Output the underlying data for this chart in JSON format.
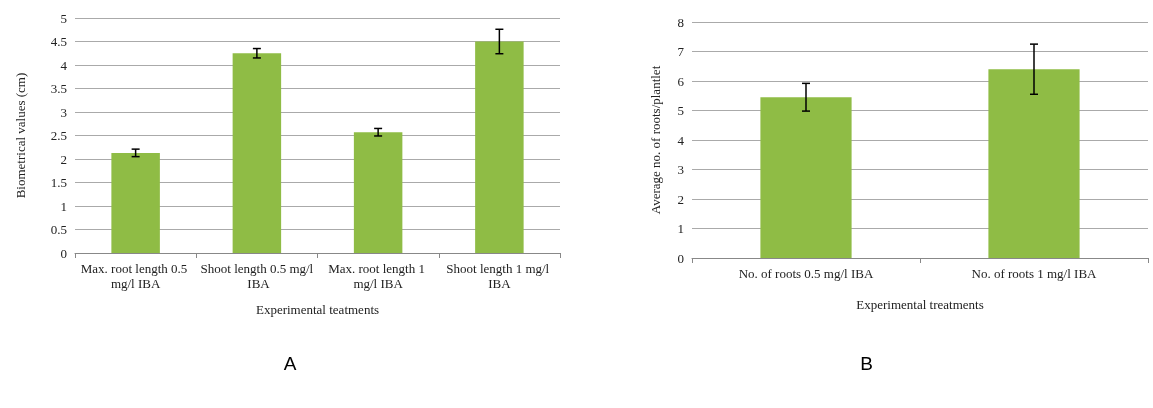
{
  "chart_data": [
    {
      "type": "bar",
      "title": "A",
      "xlabel": "Experimental teatments",
      "ylabel": "Biometrical values (cm)",
      "categories": [
        "Max. root length 0.5 mg/l IBA",
        "Shoot length 0.5 mg/l IBA",
        "Max. root length 1 mg/l IBA",
        "Shoot length 1 mg/l IBA"
      ],
      "values": [
        2.13,
        4.25,
        2.57,
        4.5
      ],
      "errors": [
        0.08,
        0.1,
        0.08,
        0.26
      ],
      "color": "#8fbc45",
      "ylim": [
        0,
        5
      ],
      "yticks": [
        0,
        0.5,
        1,
        1.5,
        2,
        2.5,
        3,
        3.5,
        4,
        4.5,
        5
      ],
      "grid": "y"
    },
    {
      "type": "bar",
      "title": "B",
      "xlabel": "Experimental treatments",
      "ylabel": "Average no. of roots/plantlet",
      "categories": [
        "No. of roots 0.5 mg/l IBA",
        "No. of roots 1 mg/l IBA"
      ],
      "values": [
        5.45,
        6.4
      ],
      "errors": [
        0.47,
        0.85
      ],
      "color": "#8fbc45",
      "ylim": [
        0,
        8
      ],
      "yticks": [
        0,
        1,
        2,
        3,
        4,
        5,
        6,
        7,
        8
      ],
      "grid": "y"
    }
  ]
}
